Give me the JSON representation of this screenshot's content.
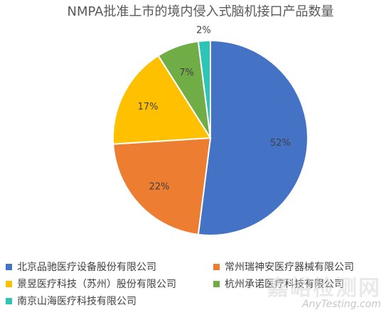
{
  "chart_data": {
    "type": "pie",
    "title": "NMPA批准上市的境内侵入式脑机接口产品数量",
    "categories": [
      "北京品驰医疗设备股份有限公司",
      "常州瑞神安医疗器械有限公司",
      "景昱医疗科技（苏州）股份有限公司",
      "杭州承诺医疗科技有限公司",
      "南京山海医疗科技有限公司"
    ],
    "values": [
      52,
      22,
      17,
      7,
      2
    ],
    "data_labels": [
      "52%",
      "22%",
      "17%",
      "7%",
      "2%"
    ],
    "colors": [
      "#4472C4",
      "#ED7D31",
      "#FFC000",
      "#70AD47",
      "#2EC4B6"
    ],
    "legend_position": "bottom"
  },
  "watermark": {
    "cn": "嘉峪检测网",
    "en": "AnyTesting.com"
  }
}
